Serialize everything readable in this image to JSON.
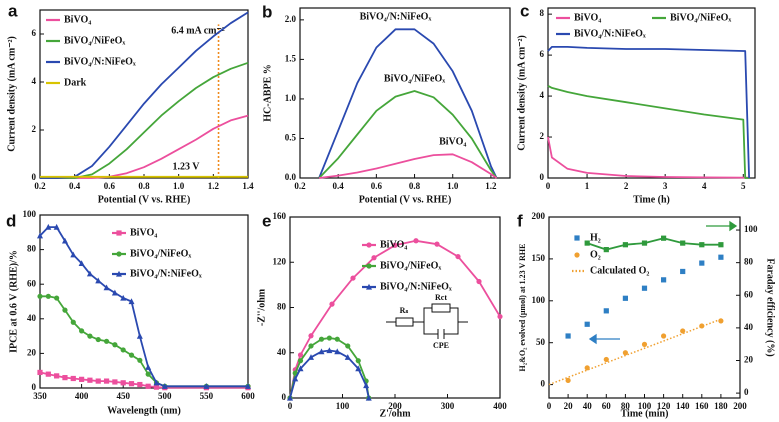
{
  "chart_data": [
    {
      "type": "line",
      "panel": "a",
      "xlabel": "Potential (V vs. RHE)",
      "ylabel": "Current density (mA cm⁻²)",
      "x": [
        0.2,
        0.3,
        0.4,
        0.5,
        0.6,
        0.7,
        0.8,
        0.9,
        1.0,
        1.1,
        1.2,
        1.3,
        1.4
      ],
      "series": [
        {
          "name": "BiVO₄",
          "color": "#ec4f9d",
          "values": [
            0,
            0,
            0,
            0,
            0.05,
            0.2,
            0.45,
            0.8,
            1.2,
            1.6,
            2.05,
            2.4,
            2.6
          ]
        },
        {
          "name": "BiVO₄/NiFeOₓ",
          "color": "#45a63a",
          "values": [
            0,
            0,
            0,
            0.15,
            0.6,
            1.2,
            1.9,
            2.6,
            3.2,
            3.75,
            4.2,
            4.55,
            4.8
          ]
        },
        {
          "name": "BiVO₄/N:NiFeOₓ",
          "color": "#2a49b0",
          "values": [
            0,
            0,
            0.05,
            0.5,
            1.3,
            2.2,
            3.1,
            3.9,
            4.6,
            5.3,
            5.9,
            6.45,
            6.9
          ]
        },
        {
          "name": "Dark",
          "color": "#d8c400",
          "values": [
            0.05,
            0.05,
            0.05,
            0.05,
            0.05,
            0.05,
            0.05,
            0.05,
            0.05,
            0.05,
            0.05,
            0.05,
            0.05
          ]
        }
      ],
      "guide": {
        "x": 1.23,
        "y": 6.4,
        "color": "#f08a1c"
      },
      "annotations": [
        "6.4 mA cm⁻²",
        "1.23 V"
      ],
      "xlim": [
        0.2,
        1.4
      ],
      "xticks": [
        0.2,
        0.4,
        0.6,
        0.8,
        {
          "value": 1.0,
          "label": "1.0"
        },
        1.2,
        1.4
      ],
      "ylim": [
        0,
        7
      ],
      "yticks": [
        0,
        2,
        4,
        6
      ],
      "legend": "upper left"
    },
    {
      "type": "line",
      "panel": "b",
      "xlabel": "Potential (V vs. RHE)",
      "ylabel": "HC-ABPE %",
      "x": [
        0.3,
        0.4,
        0.5,
        0.6,
        0.7,
        0.8,
        0.9,
        1.0,
        1.1,
        1.2,
        1.23
      ],
      "series": [
        {
          "name": "BiVO₄/N:NiFeOₓ",
          "color": "#2a49b0",
          "values": [
            0,
            0.6,
            1.2,
            1.65,
            1.88,
            1.88,
            1.7,
            1.35,
            0.85,
            0.15,
            0
          ]
        },
        {
          "name": "BiVO₄/NiFeOₓ",
          "color": "#45a63a",
          "values": [
            0,
            0.25,
            0.55,
            0.85,
            1.03,
            1.1,
            1.02,
            0.8,
            0.5,
            0.1,
            0
          ]
        },
        {
          "name": "BiVO₄",
          "color": "#ec4f9d",
          "values": [
            0,
            0.03,
            0.07,
            0.12,
            0.18,
            0.24,
            0.29,
            0.3,
            0.2,
            0.05,
            0
          ]
        }
      ],
      "xlim": [
        0.2,
        1.3
      ],
      "xticks": [
        0.2,
        0.4,
        0.6,
        0.8,
        {
          "value": 1.0,
          "label": "1.0"
        },
        1.2
      ],
      "ylim": [
        0,
        2.15
      ],
      "yticks": [
        {
          "value": 0,
          "label": "0.0"
        },
        0.5,
        {
          "value": 1,
          "label": "1.0"
        },
        1.5,
        {
          "value": 2,
          "label": "2.0"
        }
      ],
      "legend": "on curves"
    },
    {
      "type": "line",
      "panel": "c",
      "xlabel": "Time (h)",
      "ylabel": "Current density (mA cm⁻²)",
      "x": [
        0,
        0.1,
        0.5,
        1,
        2,
        3,
        4,
        5,
        5.05,
        5.15
      ],
      "series": [
        {
          "name": "BiVO₄",
          "color": "#ec4f9d",
          "values": [
            2.0,
            1.0,
            0.45,
            0.25,
            0.1,
            0.05,
            0.03,
            0.02,
            0.02,
            0.02
          ]
        },
        {
          "name": "BiVO₄/NiFeOₓ",
          "color": "#45a63a",
          "values": [
            4.5,
            4.4,
            4.2,
            4.0,
            3.7,
            3.4,
            3.1,
            2.85,
            0,
            0
          ]
        },
        {
          "name": "BiVO₄/N:NiFeOₓ",
          "color": "#2a49b0",
          "values": [
            6.2,
            6.4,
            6.4,
            6.35,
            6.3,
            6.3,
            6.25,
            6.2,
            6.2,
            0
          ]
        }
      ],
      "xlim": [
        0,
        5.3
      ],
      "xticks": [
        0,
        1,
        2,
        3,
        4,
        5
      ],
      "ylim": [
        0,
        8.3
      ],
      "yticks": [
        0,
        2,
        4,
        6,
        8
      ],
      "legend": "top"
    },
    {
      "type": "line",
      "panel": "d",
      "xlabel": "Wavelength (nm)",
      "ylabel": "IPCE at 0.6 V (RHE)/%",
      "x": [
        350,
        360,
        370,
        380,
        390,
        400,
        410,
        420,
        430,
        440,
        450,
        460,
        470,
        480,
        490,
        500,
        550,
        600
      ],
      "series": [
        {
          "name": "BiVO₄",
          "color": "#ec4f9d",
          "marker": "square",
          "values": [
            9,
            8,
            7,
            6,
            5.5,
            5,
            4.5,
            4,
            4,
            3.5,
            3,
            2.5,
            2,
            1,
            0.5,
            0.2,
            0.2,
            0.2
          ]
        },
        {
          "name": "BiVO₄/NiFeOₓ",
          "color": "#45a63a",
          "marker": "circle",
          "values": [
            53,
            53,
            52,
            45,
            38,
            33,
            30,
            28,
            27,
            25,
            22,
            19,
            16,
            8,
            3,
            1,
            1,
            1
          ]
        },
        {
          "name": "BiVO₄/N:NiFeOₓ",
          "color": "#2a49b0",
          "marker": "triangle",
          "values": [
            88,
            93,
            93,
            85,
            77,
            72,
            66,
            62,
            58,
            55,
            52,
            50,
            30,
            12,
            3,
            1,
            1,
            1
          ]
        }
      ],
      "xlim": [
        350,
        600
      ],
      "xticks": [
        350,
        400,
        450,
        500,
        550,
        600
      ],
      "ylim": [
        0,
        100
      ],
      "yticks": [
        0,
        20,
        40,
        60,
        80,
        100
      ],
      "legend": "upper right"
    },
    {
      "type": "line",
      "panel": "e",
      "xlabel": "Z'/ohm",
      "ylabel": "-Z''/ohm",
      "series": [
        {
          "name": "BiVO₄",
          "color": "#ec4f9d",
          "marker": "circle",
          "x": [
            0,
            10,
            20,
            40,
            80,
            120,
            160,
            200,
            240,
            280,
            320,
            360,
            400
          ],
          "values": [
            0,
            25,
            38,
            55,
            83,
            106,
            124,
            135,
            139,
            136,
            125,
            103,
            72
          ]
        },
        {
          "name": "BiVO₄/NiFeOₓ",
          "color": "#45a63a",
          "marker": "circle",
          "x": [
            0,
            10,
            20,
            40,
            60,
            75,
            90,
            110,
            130,
            145,
            150
          ],
          "values": [
            0,
            22,
            33,
            46,
            52,
            53,
            52,
            46,
            33,
            15,
            0
          ]
        },
        {
          "name": "BiVO₄/N:NiFeOₓ",
          "color": "#2a49b0",
          "marker": "triangle",
          "x": [
            0,
            10,
            20,
            40,
            60,
            75,
            90,
            110,
            130,
            145,
            150
          ],
          "values": [
            0,
            17,
            26,
            36,
            41,
            42,
            41,
            36,
            26,
            11,
            0
          ]
        }
      ],
      "circuit_labels": [
        "Rₛ",
        "Rct",
        "CPE"
      ],
      "xlim": [
        0,
        400
      ],
      "xticks": [
        0,
        100,
        200,
        300,
        400
      ],
      "ylim": [
        0,
        160
      ],
      "yticks": [
        0,
        40,
        80,
        120,
        160
      ],
      "legend": "center right"
    },
    {
      "type": "scatter",
      "panel": "f",
      "xlabel": "Time (min)",
      "ylabel": "H₂&O₂ evolved (μmol) at 1.23 V RHE",
      "y2label": "Faraday efficiency (%)",
      "series": [
        {
          "name": "H₂",
          "color": "#2e7fc4",
          "marker": "square",
          "style": "markers",
          "x": [
            20,
            40,
            60,
            80,
            100,
            120,
            140,
            160,
            180
          ],
          "values": [
            58,
            72,
            88,
            103,
            115,
            125,
            135,
            145,
            152
          ]
        },
        {
          "name": "O₂",
          "color": "#f0a030",
          "marker": "circle",
          "style": "markers",
          "x": [
            20,
            40,
            60,
            80,
            100,
            120,
            140,
            160,
            180
          ],
          "values": [
            5,
            20,
            30,
            38,
            48,
            58,
            64,
            70,
            76
          ]
        },
        {
          "name": "Calculated O₂",
          "color": "#f0a030",
          "style": "dotted",
          "x": [
            0,
            180
          ],
          "values": [
            0,
            78
          ]
        },
        {
          "color": "#2f9a3c",
          "marker": "square",
          "axis": "y2",
          "x": [
            40,
            60,
            80,
            100,
            120,
            140,
            160,
            180
          ],
          "values": [
            92,
            88,
            91,
            92,
            95,
            92,
            91,
            91
          ]
        }
      ],
      "xlim": [
        0,
        200
      ],
      "xticks": [
        0,
        20,
        40,
        60,
        80,
        100,
        120,
        140,
        160,
        180,
        200
      ],
      "ylim": [
        -16,
        200
      ],
      "yticks": [
        0,
        50,
        100,
        150,
        200
      ],
      "y2lim": [
        -3,
        108
      ],
      "y2ticks": [
        0,
        20,
        40,
        60,
        80,
        100
      ],
      "legend": "upper left"
    }
  ]
}
